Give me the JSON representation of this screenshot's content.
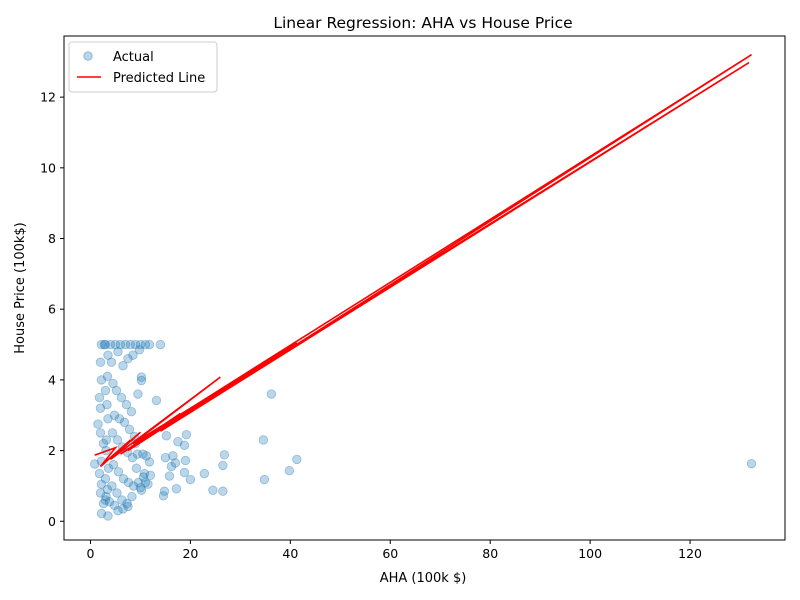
{
  "chart_data": {
    "type": "scatter",
    "title": "Linear Regression: AHA vs House Price",
    "xlabel": "AHA (100k $)",
    "ylabel": "House Price (100k$)",
    "xlim": [
      -5.3,
      139.0
    ],
    "ylim": [
      -0.53,
      13.73
    ],
    "x_ticks": [
      "0",
      "20",
      "40",
      "60",
      "80",
      "100",
      "120"
    ],
    "y_ticks": [
      "0",
      "2",
      "4",
      "6",
      "8",
      "10",
      "12"
    ],
    "grid": false,
    "legend_position": "upper-left",
    "series": [
      {
        "name": "Actual",
        "kind": "scatter",
        "color": "#1f77b4",
        "opacity": 0.3,
        "points": [
          [
            0.85,
            1.62
          ],
          [
            2.8,
            5.0
          ],
          [
            3.0,
            5.0
          ],
          [
            2.2,
            5.0
          ],
          [
            3.5,
            4.7
          ],
          [
            2.0,
            4.5
          ],
          [
            2.2,
            4.0
          ],
          [
            1.8,
            3.5
          ],
          [
            2.0,
            3.2
          ],
          [
            1.5,
            2.75
          ],
          [
            2.0,
            2.5
          ],
          [
            2.6,
            2.2
          ],
          [
            1.8,
            1.35
          ],
          [
            2.2,
            1.05
          ],
          [
            2.0,
            0.8
          ],
          [
            2.2,
            0.22
          ],
          [
            3.5,
            0.15
          ],
          [
            2.6,
            0.5
          ],
          [
            3.0,
            0.6
          ],
          [
            2.2,
            1.7
          ],
          [
            4.0,
            5.0
          ],
          [
            5.0,
            5.0
          ],
          [
            6.0,
            5.0
          ],
          [
            7.0,
            5.0
          ],
          [
            8.0,
            5.0
          ],
          [
            9.0,
            5.0
          ],
          [
            10.0,
            5.0
          ],
          [
            11.0,
            5.0
          ],
          [
            11.8,
            5.0
          ],
          [
            14.0,
            5.0
          ],
          [
            4.2,
            4.5
          ],
          [
            5.5,
            4.8
          ],
          [
            6.5,
            4.4
          ],
          [
            7.5,
            4.6
          ],
          [
            8.5,
            4.7
          ],
          [
            9.8,
            4.85
          ],
          [
            10.2,
            4.08
          ],
          [
            10.2,
            3.98
          ],
          [
            13.2,
            3.42
          ],
          [
            9.5,
            3.6
          ],
          [
            4.5,
            3.9
          ],
          [
            5.2,
            3.7
          ],
          [
            6.2,
            3.5
          ],
          [
            7.2,
            3.3
          ],
          [
            8.2,
            3.1
          ],
          [
            4.8,
            3.0
          ],
          [
            5.8,
            2.9
          ],
          [
            6.8,
            2.8
          ],
          [
            7.8,
            2.6
          ],
          [
            8.8,
            2.4
          ],
          [
            4.4,
            2.5
          ],
          [
            5.4,
            2.3
          ],
          [
            6.4,
            2.1
          ],
          [
            7.4,
            1.95
          ],
          [
            8.4,
            1.8
          ],
          [
            9.4,
            1.9
          ],
          [
            10.5,
            1.9
          ],
          [
            11.2,
            1.85
          ],
          [
            11.8,
            1.68
          ],
          [
            9.2,
            1.5
          ],
          [
            4.6,
            1.6
          ],
          [
            5.6,
            1.4
          ],
          [
            6.6,
            1.2
          ],
          [
            7.6,
            1.1
          ],
          [
            8.6,
            1.0
          ],
          [
            9.6,
            1.1
          ],
          [
            10.6,
            1.25
          ],
          [
            10.0,
            0.95
          ],
          [
            10.2,
            0.88
          ],
          [
            11.0,
            1.1
          ],
          [
            4.3,
            1.0
          ],
          [
            5.3,
            0.8
          ],
          [
            6.3,
            0.6
          ],
          [
            7.3,
            0.5
          ],
          [
            8.3,
            0.7
          ],
          [
            5.5,
            0.3
          ],
          [
            6.5,
            0.35
          ],
          [
            7.5,
            0.42
          ],
          [
            4.8,
            0.45
          ],
          [
            3.8,
            0.55
          ],
          [
            3.2,
            2.3
          ],
          [
            3.5,
            2.9
          ],
          [
            3.3,
            3.3
          ],
          [
            3.0,
            3.7
          ],
          [
            3.4,
            4.1
          ],
          [
            3.1,
            2.0
          ],
          [
            3.6,
            1.5
          ],
          [
            3.0,
            1.2
          ],
          [
            3.4,
            0.9
          ],
          [
            3.1,
            0.7
          ],
          [
            15.2,
            2.42
          ],
          [
            15.0,
            1.8
          ],
          [
            14.8,
            0.85
          ],
          [
            14.6,
            0.72
          ],
          [
            15.8,
            1.28
          ],
          [
            16.2,
            1.55
          ],
          [
            16.5,
            1.85
          ],
          [
            17.0,
            1.65
          ],
          [
            17.5,
            2.25
          ],
          [
            17.2,
            0.92
          ],
          [
            18.8,
            2.15
          ],
          [
            19.0,
            1.72
          ],
          [
            19.2,
            2.45
          ],
          [
            18.8,
            1.38
          ],
          [
            20.0,
            1.18
          ],
          [
            22.8,
            1.35
          ],
          [
            24.5,
            0.88
          ],
          [
            26.5,
            1.58
          ],
          [
            26.8,
            1.88
          ],
          [
            26.5,
            0.85
          ],
          [
            34.6,
            2.3
          ],
          [
            34.8,
            1.18
          ],
          [
            36.2,
            3.6
          ],
          [
            39.8,
            1.43
          ],
          [
            41.3,
            1.75
          ],
          [
            132.3,
            1.63
          ],
          [
            12.0,
            1.3
          ],
          [
            11.5,
            1.05
          ],
          [
            10.8,
            1.35
          ],
          [
            9.0,
            2.2
          ]
        ]
      },
      {
        "name": "Predicted Line",
        "kind": "line",
        "color": "#ff0000",
        "points": [
          [
            0.85,
            1.87
          ],
          [
            5.0,
            2.08
          ],
          [
            2.0,
            1.55
          ],
          [
            8.0,
            2.3
          ],
          [
            3.0,
            1.68
          ],
          [
            10.0,
            2.52
          ],
          [
            4.0,
            1.75
          ],
          [
            26.0,
            4.08
          ],
          [
            8.5,
            2.2
          ],
          [
            41.3,
            5.05
          ],
          [
            10.5,
            2.35
          ],
          [
            132.3,
            13.2
          ],
          [
            14.0,
            2.55
          ],
          [
            131.8,
            12.98
          ],
          [
            6.0,
            1.9
          ],
          [
            18.0,
            3.05
          ],
          [
            7.5,
            2.0
          ],
          [
            24.0,
            3.5
          ]
        ]
      }
    ]
  }
}
